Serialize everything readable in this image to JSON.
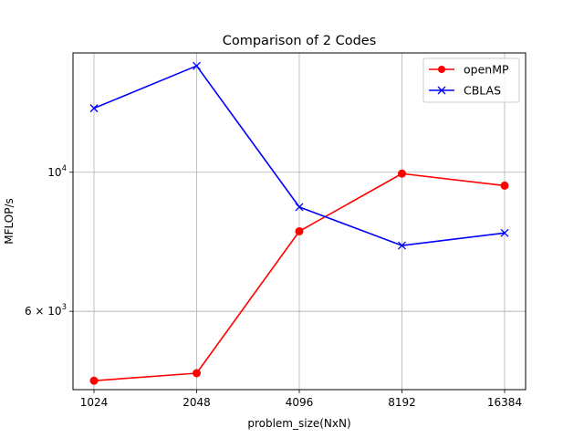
{
  "chart_data": {
    "type": "line",
    "title": "Comparison of 2 Codes",
    "xlabel": "problem_size(NxN)",
    "ylabel": "MFLOP/s",
    "x_scale": "log2",
    "y_scale": "log",
    "x": [
      1024,
      2048,
      4096,
      8192,
      16384
    ],
    "x_tick_labels": [
      "1024",
      "2048",
      "4096",
      "8192",
      "16384"
    ],
    "y_ticks": [
      {
        "value": 10000,
        "base": "10",
        "exp": "4",
        "mult": ""
      },
      {
        "value": 6000,
        "base": "10",
        "exp": "3",
        "mult": "6 × "
      }
    ],
    "ylim": [
      4500,
      15500
    ],
    "grid": true,
    "legend_position": "top-right",
    "series": [
      {
        "name": "openMP",
        "color": "#ff0000",
        "marker": "circle",
        "values": [
          4650,
          4780,
          8050,
          9950,
          9520
        ]
      },
      {
        "name": "CBLAS",
        "color": "#0000ff",
        "marker": "x",
        "values": [
          12650,
          14780,
          8800,
          7640,
          8000
        ]
      }
    ]
  }
}
